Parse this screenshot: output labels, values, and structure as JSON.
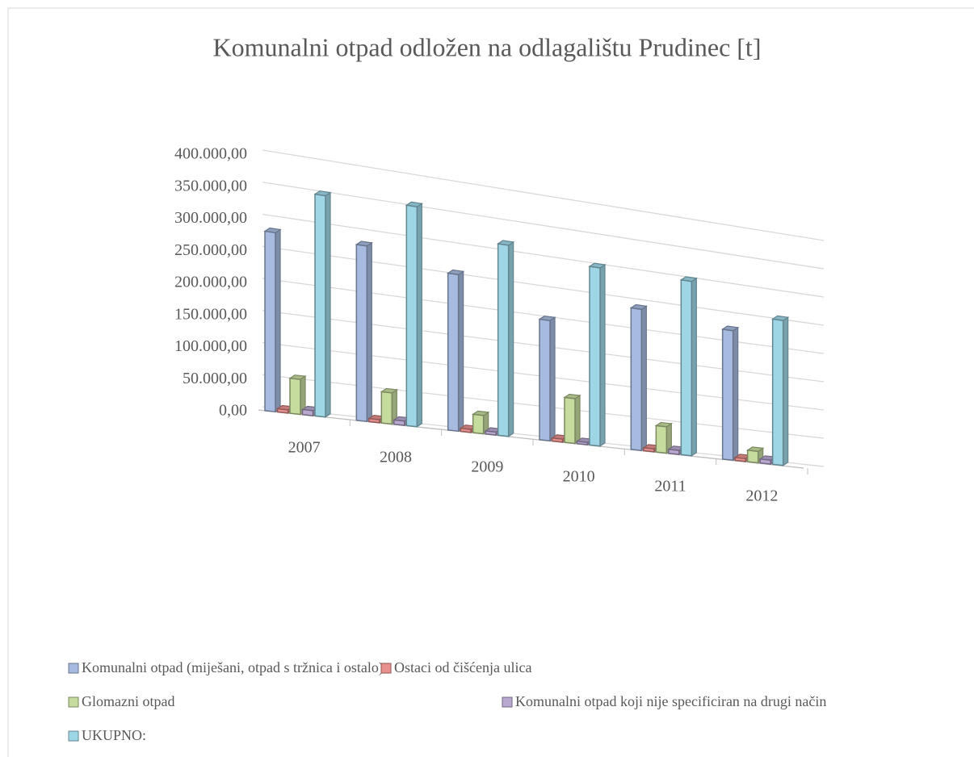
{
  "chart_data": {
    "type": "bar3d",
    "title": "Komunalni otpad odložen na odlagalištu Prudinec [t]",
    "categories": [
      "2007",
      "2008",
      "2009",
      "2010",
      "2011",
      "2012"
    ],
    "series": [
      {
        "name": "Komunalni otpad (miješani, otpad s tržnica i ostalo)",
        "color": "#a7bbe0",
        "values": [
          280000,
          280000,
          255000,
          200000,
          240000,
          225000
        ]
      },
      {
        "name": "Ostaci od čišćenja ulica",
        "color": "#e8908d",
        "values": [
          5000,
          5000,
          5000,
          5000,
          5000,
          5000
        ]
      },
      {
        "name": "Glomazni otpad",
        "color": "#c6dc9e",
        "values": [
          55000,
          50000,
          30000,
          75000,
          45000,
          20000
        ]
      },
      {
        "name": "Komunalni otpad koji nije specificiran na drugi način",
        "color": "#b8a7cf",
        "values": [
          8000,
          7000,
          5000,
          4000,
          7000,
          7000
        ]
      },
      {
        "name": "UKUPNO:",
        "color": "#9fd6e6",
        "values": [
          350000,
          355000,
          315000,
          300000,
          300000,
          255000
        ]
      }
    ],
    "ylim": [
      0,
      400000
    ],
    "yticks": [
      {
        "value": 0,
        "label": "0,00"
      },
      {
        "value": 50000,
        "label": "50.000,00"
      },
      {
        "value": 100000,
        "label": "100.000,00"
      },
      {
        "value": 150000,
        "label": "150.000,00"
      },
      {
        "value": 200000,
        "label": "200.000,00"
      },
      {
        "value": 250000,
        "label": "250.000,00"
      },
      {
        "value": 300000,
        "label": "300.000,00"
      },
      {
        "value": 350000,
        "label": "350.000,00"
      },
      {
        "value": 400000,
        "label": "400.000,00"
      }
    ],
    "grid": true,
    "legend": "bottom"
  }
}
